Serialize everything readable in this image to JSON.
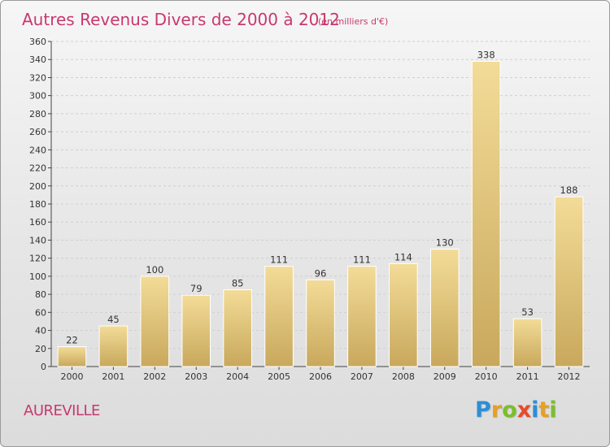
{
  "colors": {
    "accent": "#c8386e",
    "bar_light": "#f3dc98",
    "bar_dark": "#c8a85c",
    "grid": "#cfcfcf"
  },
  "city": "AUREVILLE",
  "logo": {
    "letters": [
      "P",
      "r",
      "o",
      "x",
      "i",
      "t",
      "i"
    ]
  },
  "chart_data": {
    "type": "bar",
    "title": "Autres Revenus Divers de 2000 à 2012",
    "subtitle": "(en milliers d'€)",
    "xlabel": "",
    "ylabel": "",
    "ylim": [
      0,
      360
    ],
    "yticks": [
      0,
      20,
      40,
      60,
      80,
      100,
      120,
      140,
      160,
      180,
      200,
      220,
      240,
      260,
      280,
      300,
      320,
      340,
      360
    ],
    "grid": true,
    "categories": [
      "2000",
      "2001",
      "2002",
      "2003",
      "2004",
      "2005",
      "2006",
      "2007",
      "2008",
      "2009",
      "2010",
      "2011",
      "2012"
    ],
    "values": [
      22,
      45,
      100,
      79,
      85,
      111,
      96,
      111,
      114,
      130,
      338,
      53,
      188
    ]
  }
}
